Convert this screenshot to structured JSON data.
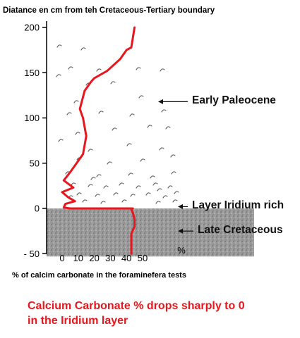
{
  "chart_data": {
    "type": "line",
    "title": "Diatance en cm from teh Cretaceous-Tertiary boundary",
    "xlabel": "% of calcim carbonate in the foraminefera tests",
    "ylabel": "",
    "x_unit_label": "%",
    "xlim": [
      -5,
      57
    ],
    "ylim": [
      -50,
      205
    ],
    "x_ticks": [
      0,
      10,
      20,
      30,
      40,
      50
    ],
    "y_ticks": [
      200,
      150,
      100,
      50,
      0,
      -50
    ],
    "y_tick_labels": [
      "200",
      "150",
      "100",
      "50",
      "0",
      "- 50"
    ],
    "grid": false,
    "series": [
      {
        "name": "",
        "color": "#e8161d",
        "points": [
          [
            43,
            -50
          ],
          [
            43,
            -40
          ],
          [
            43,
            -28
          ],
          [
            45,
            -20
          ],
          [
            45,
            -12
          ],
          [
            44,
            -5
          ],
          [
            43,
            -1
          ],
          [
            44,
            0
          ],
          [
            40,
            0
          ],
          [
            20,
            0
          ],
          [
            5,
            0
          ],
          [
            1,
            1
          ],
          [
            2,
            5
          ],
          [
            8,
            8
          ],
          [
            4,
            12
          ],
          [
            0,
            18
          ],
          [
            7,
            23
          ],
          [
            1,
            31
          ],
          [
            5,
            40
          ],
          [
            13,
            60
          ],
          [
            15,
            80
          ],
          [
            13,
            100
          ],
          [
            11,
            110
          ],
          [
            14,
            130
          ],
          [
            18,
            140
          ],
          [
            20,
            144
          ],
          [
            28,
            152
          ],
          [
            36,
            165
          ],
          [
            40,
            175
          ],
          [
            43,
            178
          ],
          [
            45,
            200
          ]
        ]
      }
    ],
    "bands": [
      {
        "name": "Late Cretaceous",
        "y_from": -50,
        "y_to": 0,
        "color": "#8f8f8f"
      }
    ],
    "annotations": [
      {
        "text": "Early Paleocene",
        "y": 118
      },
      {
        "text": "Layer Iridium rich",
        "y": 2
      },
      {
        "text": "Late Cretaceous",
        "y": -25
      }
    ]
  },
  "caption": {
    "line1": "Calcium Carbonate % drops sharply to 0",
    "line2": "in the Iridium layer"
  }
}
